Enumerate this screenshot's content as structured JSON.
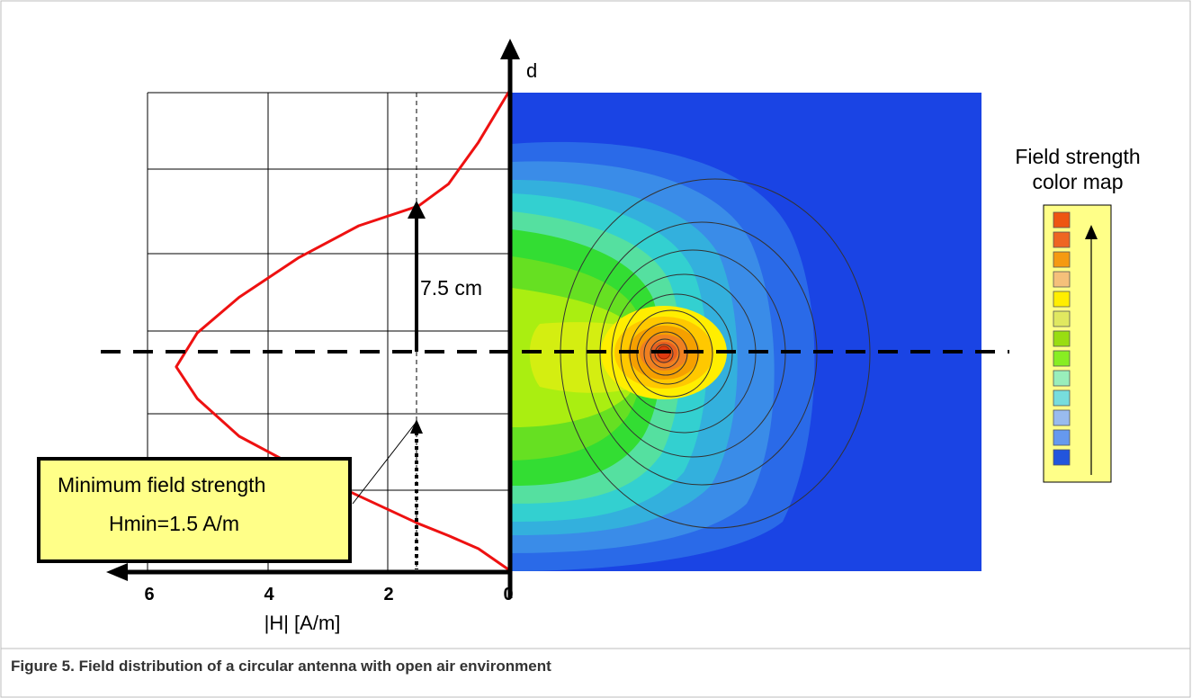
{
  "figure": {
    "caption": "Figure 5.  Field distribution of a circular antenna with open air environment"
  },
  "chart_data": {
    "type": "line",
    "xlabel": "|H| [A/m]",
    "ylabel": "d",
    "x_ticks": [
      "6",
      "4",
      "2",
      "0"
    ],
    "xlim": [
      0,
      6
    ],
    "x_axis_reversed": true,
    "grid": true,
    "series": [
      {
        "color": "#ee1111",
        "points": [
          [
            0,
            0
          ],
          [
            0.5,
            0.52
          ],
          [
            1.0,
            0.85
          ],
          [
            1.5,
            1.15
          ],
          [
            2.5,
            1.85
          ],
          [
            3.5,
            2.55
          ],
          [
            4.5,
            3.35
          ],
          [
            5.2,
            4.3
          ],
          [
            5.55,
            5.1
          ],
          [
            5.2,
            5.95
          ],
          [
            4.5,
            6.85
          ],
          [
            3.5,
            7.85
          ],
          [
            2.5,
            8.65
          ],
          [
            1.5,
            9.15
          ],
          [
            1.0,
            9.7
          ],
          [
            0.5,
            10.75
          ],
          [
            0,
            12.0
          ]
        ]
      }
    ],
    "hmin_line": 1.5,
    "annotations": {
      "distance_label": "7.5 cm",
      "callout_title": "Minimum field strength",
      "callout_value": "Hmin=1.5 A/m"
    },
    "color_map": {
      "title_line1": "Field strength",
      "title_line2": "color map",
      "colors": [
        "#ee5511",
        "#ee6622",
        "#f59a11",
        "#f5c07a",
        "#ffee00",
        "#e0e860",
        "#99dd11",
        "#88ee22",
        "#99eebb",
        "#77dddd",
        "#99bbee",
        "#6699ee",
        "#2255dd"
      ]
    }
  }
}
